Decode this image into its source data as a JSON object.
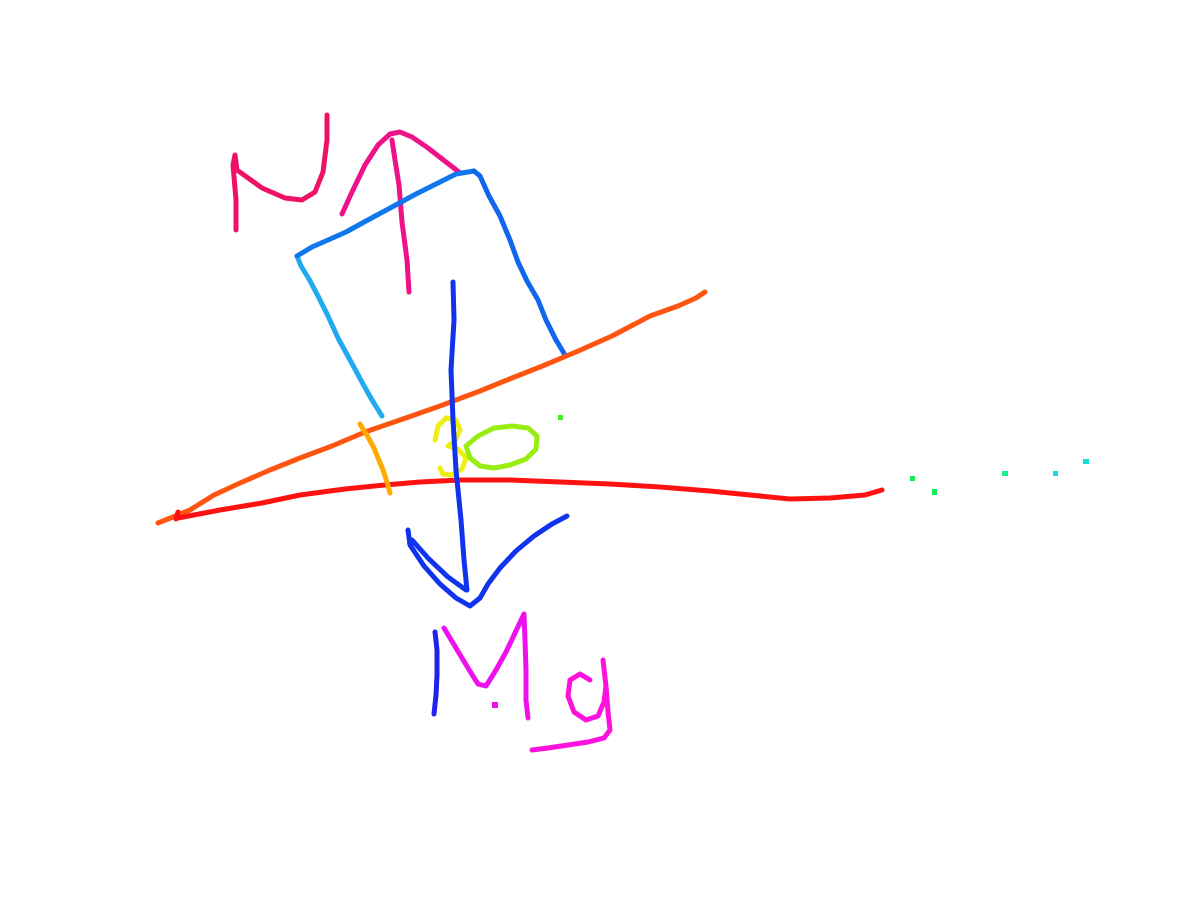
{
  "diagram": {
    "normal_force_label": "N",
    "weight_label": "Mg",
    "angle_label": "30"
  },
  "colors": {
    "background": "#ffffff",
    "normal_label": "#ee1166",
    "normal_arrow": "#ee1188",
    "block_left": "#22aaee",
    "block_top": "#1177ee",
    "block_right": "#1166ee",
    "incline": "#ff5511",
    "ground": "#ff1111",
    "angle_arc": "#ffaa00",
    "angle_text_3": "#eeee11",
    "angle_text_0": "#99ee11",
    "weight_arrow": "#1133ee",
    "weight_m": "#2222ee",
    "weight_g": "#ff11dd",
    "dots_green": "#11ee55",
    "dots_cyan": "#11dddd"
  }
}
